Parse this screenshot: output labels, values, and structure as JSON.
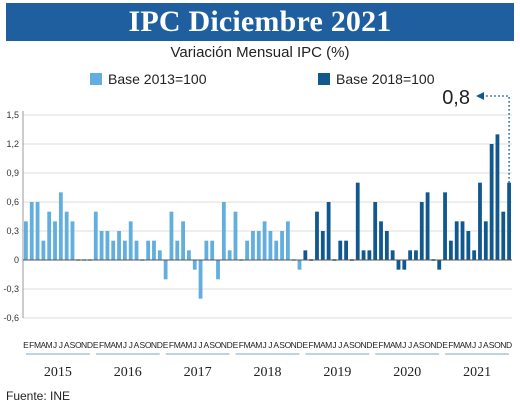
{
  "chart_data": {
    "type": "bar",
    "title": "IPC Diciembre 2021",
    "subtitle": "Variación Mensual IPC (%)",
    "source": "Fuente: INE",
    "ylim": [
      -0.6,
      1.5
    ],
    "yticks": [
      "1,5",
      "1,2",
      "0,9",
      "0,6",
      "0,3",
      "0",
      "-0,3",
      "-0,6"
    ],
    "grid": true,
    "legend_position": "top",
    "month_letters": [
      "E",
      "F",
      "M",
      "A",
      "M",
      "J",
      "J",
      "A",
      "S",
      "O",
      "N",
      "D"
    ],
    "years": [
      "2015",
      "2016",
      "2017",
      "2018",
      "2019",
      "2020",
      "2021"
    ],
    "annotation": {
      "text": "0,8"
    },
    "colors": {
      "banner": "#1f5fa0",
      "base_2013": "#62aede",
      "base_2018": "#11588f",
      "grid": "#dddddd",
      "year_rule": "#7aa7cf"
    },
    "series": [
      {
        "name": "Base 2013=100",
        "values": [
          0.4,
          0.6,
          0.6,
          0.2,
          0.5,
          0.4,
          0.7,
          0.5,
          0.4,
          0.0,
          0.0,
          0.0,
          0.5,
          0.3,
          0.3,
          0.2,
          0.3,
          0.2,
          0.4,
          0.2,
          0.0,
          0.2,
          0.2,
          0.1,
          -0.2,
          0.5,
          0.2,
          0.4,
          0.1,
          -0.1,
          -0.4,
          0.2,
          0.2,
          -0.2,
          0.6,
          0.1,
          0.5,
          0.0,
          0.2,
          0.3,
          0.3,
          0.4,
          0.3,
          0.2,
          0.3,
          0.4,
          0.0,
          -0.1
        ]
      },
      {
        "name": "Base 2018=100",
        "values": [
          0.1,
          0.0,
          0.5,
          0.3,
          0.6,
          0.0,
          0.2,
          0.2,
          0.0,
          0.8,
          0.1,
          0.1,
          0.6,
          0.4,
          0.3,
          0.1,
          -0.1,
          -0.1,
          0.1,
          0.1,
          0.6,
          0.7,
          0.0,
          -0.1,
          0.7,
          0.2,
          0.4,
          0.4,
          0.3,
          0.1,
          0.8,
          0.4,
          1.2,
          1.3,
          0.5,
          0.8
        ]
      }
    ]
  }
}
